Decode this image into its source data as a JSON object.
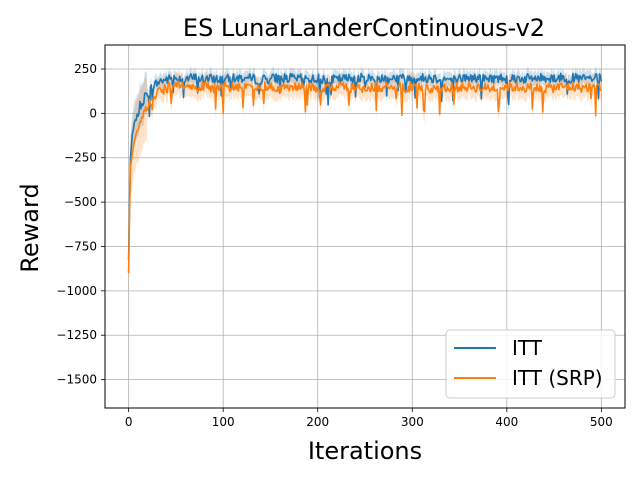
{
  "chart_data": {
    "type": "line",
    "title": "ES LunarLanderContinuous-v2",
    "xlabel": "Iterations",
    "ylabel": "Reward",
    "xlim": [
      -25,
      525
    ],
    "ylim": [
      -1660,
      385
    ],
    "xticks": [
      0,
      100,
      200,
      300,
      400,
      500
    ],
    "xtick_labels": [
      "0",
      "100",
      "200",
      "300",
      "400",
      "500"
    ],
    "yticks": [
      250,
      0,
      -250,
      -500,
      -750,
      -1000,
      -1250,
      -1500
    ],
    "ytick_labels": [
      "250",
      "0",
      "−250",
      "−500",
      "−750",
      "−1000",
      "−1250",
      "−1500"
    ],
    "grid": true,
    "legend": "lower-right",
    "series": [
      {
        "name": "ITT",
        "color": "#1f77b4",
        "x": [
          0,
          1,
          2,
          4,
          6,
          8,
          10,
          12,
          15,
          18,
          21,
          25,
          30,
          35,
          40,
          45,
          50,
          60,
          70,
          80,
          90,
          100,
          120,
          140,
          160,
          180,
          200,
          220,
          240,
          260,
          280,
          300,
          320,
          340,
          360,
          380,
          400,
          420,
          440,
          460,
          480,
          500
        ],
        "y": [
          -830,
          -480,
          -250,
          -120,
          -60,
          -30,
          0,
          40,
          70,
          100,
          120,
          150,
          170,
          185,
          190,
          195,
          200,
          195,
          200,
          190,
          195,
          190,
          200,
          190,
          200,
          195,
          195,
          190,
          200,
          195,
          200,
          195,
          200,
          190,
          200,
          195,
          200,
          195,
          200,
          200,
          195,
          195
        ]
      },
      {
        "name": "ITT (SRP)",
        "color": "#ff7f0e",
        "x": [
          0,
          1,
          2,
          4,
          6,
          8,
          10,
          12,
          15,
          18,
          21,
          25,
          30,
          35,
          40,
          45,
          50,
          60,
          70,
          80,
          90,
          100,
          120,
          140,
          160,
          180,
          200,
          220,
          240,
          260,
          280,
          300,
          320,
          340,
          360,
          380,
          400,
          420,
          440,
          460,
          480,
          500
        ],
        "y": [
          -900,
          -560,
          -300,
          -220,
          -160,
          -120,
          -90,
          -60,
          -20,
          20,
          50,
          80,
          110,
          130,
          140,
          150,
          155,
          150,
          145,
          150,
          140,
          150,
          145,
          150,
          140,
          150,
          145,
          150,
          140,
          150,
          145,
          150,
          140,
          145,
          150,
          140,
          150,
          145,
          140,
          150,
          145,
          150
        ]
      }
    ]
  }
}
